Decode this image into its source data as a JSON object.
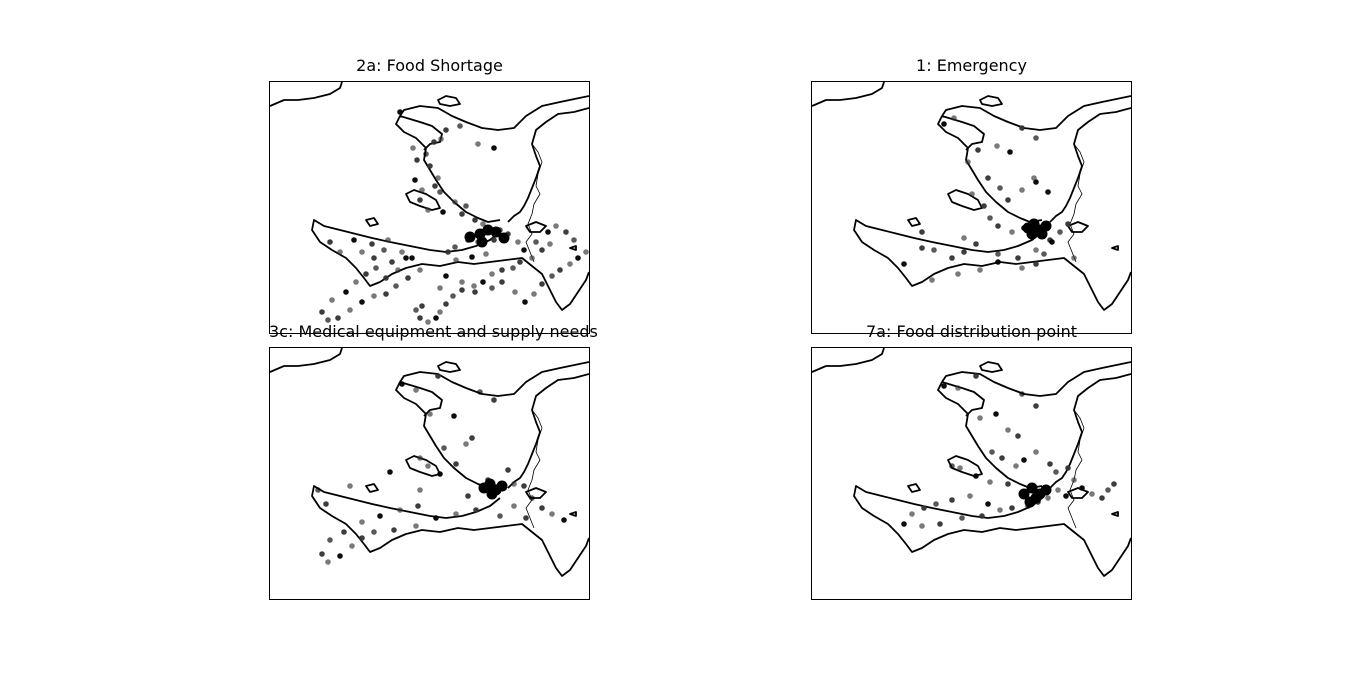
{
  "figure": {
    "panels": [
      {
        "title": "2a: Food Shortage",
        "points": [
          [
            130,
            30
          ],
          [
            171,
            57
          ],
          [
            176,
            48
          ],
          [
            190,
            44
          ],
          [
            164,
            60
          ],
          [
            208,
            62
          ],
          [
            224,
            66
          ],
          [
            143,
            66
          ],
          [
            147,
            78
          ],
          [
            156,
            72
          ],
          [
            160,
            84
          ],
          [
            168,
            96
          ],
          [
            145,
            98
          ],
          [
            152,
            108
          ],
          [
            165,
            104
          ],
          [
            170,
            110
          ],
          [
            150,
            118
          ],
          [
            158,
            128
          ],
          [
            173,
            130
          ],
          [
            185,
            120
          ],
          [
            192,
            132
          ],
          [
            196,
            124
          ],
          [
            205,
            138
          ],
          [
            213,
            142
          ],
          [
            214,
            150
          ],
          [
            208,
            160
          ],
          [
            198,
            158
          ],
          [
            185,
            165
          ],
          [
            178,
            170
          ],
          [
            186,
            178
          ],
          [
            202,
            175
          ],
          [
            216,
            172
          ],
          [
            224,
            158
          ],
          [
            230,
            148
          ],
          [
            238,
            152
          ],
          [
            248,
            160
          ],
          [
            254,
            168
          ],
          [
            262,
            176
          ],
          [
            250,
            180
          ],
          [
            243,
            186
          ],
          [
            232,
            188
          ],
          [
            222,
            192
          ],
          [
            213,
            200
          ],
          [
            204,
            204
          ],
          [
            192,
            208
          ],
          [
            183,
            214
          ],
          [
            176,
            222
          ],
          [
            170,
            230
          ],
          [
            166,
            236
          ],
          [
            158,
            240
          ],
          [
            150,
            236
          ],
          [
            146,
            228
          ],
          [
            152,
            224
          ],
          [
            170,
            206
          ],
          [
            176,
            194
          ],
          [
            192,
            200
          ],
          [
            205,
            210
          ],
          [
            222,
            206
          ],
          [
            232,
            200
          ],
          [
            245,
            210
          ],
          [
            255,
            220
          ],
          [
            264,
            212
          ],
          [
            272,
            202
          ],
          [
            282,
            194
          ],
          [
            290,
            188
          ],
          [
            300,
            182
          ],
          [
            308,
            176
          ],
          [
            316,
            170
          ],
          [
            322,
            162
          ],
          [
            304,
            158
          ],
          [
            296,
            150
          ],
          [
            286,
            144
          ],
          [
            278,
            150
          ],
          [
            280,
            162
          ],
          [
            272,
            168
          ],
          [
            266,
            160
          ],
          [
            60,
            160
          ],
          [
            70,
            170
          ],
          [
            84,
            158
          ],
          [
            92,
            170
          ],
          [
            104,
            176
          ],
          [
            114,
            168
          ],
          [
            122,
            180
          ],
          [
            132,
            170
          ],
          [
            142,
            176
          ],
          [
            150,
            188
          ],
          [
            138,
            196
          ],
          [
            126,
            204
          ],
          [
            116,
            212
          ],
          [
            104,
            214
          ],
          [
            92,
            220
          ],
          [
            80,
            228
          ],
          [
            68,
            236
          ],
          [
            58,
            238
          ],
          [
            52,
            230
          ],
          [
            62,
            218
          ],
          [
            76,
            210
          ],
          [
            86,
            200
          ],
          [
            96,
            192
          ],
          [
            106,
            186
          ],
          [
            116,
            196
          ],
          [
            128,
            188
          ],
          [
            136,
            176
          ],
          [
            118,
            158
          ],
          [
            102,
            162
          ]
        ],
        "cluster": [
          [
            200,
            155
          ],
          [
            210,
            152
          ],
          [
            218,
            148
          ],
          [
            226,
            150
          ],
          [
            234,
            156
          ],
          [
            212,
            160
          ]
        ]
      },
      {
        "title": "1: Emergency",
        "points": [
          [
            132,
            42
          ],
          [
            142,
            36
          ],
          [
            210,
            46
          ],
          [
            224,
            56
          ],
          [
            166,
            68
          ],
          [
            185,
            64
          ],
          [
            198,
            70
          ],
          [
            156,
            80
          ],
          [
            176,
            96
          ],
          [
            188,
            106
          ],
          [
            196,
            118
          ],
          [
            210,
            108
          ],
          [
            224,
            100
          ],
          [
            160,
            112
          ],
          [
            172,
            124
          ],
          [
            178,
            136
          ],
          [
            186,
            144
          ],
          [
            200,
            150
          ],
          [
            212,
            146
          ],
          [
            226,
            152
          ],
          [
            238,
            158
          ],
          [
            248,
            150
          ],
          [
            256,
            142
          ],
          [
            222,
            96
          ],
          [
            236,
            110
          ],
          [
            152,
            156
          ],
          [
            164,
            162
          ],
          [
            186,
            172
          ],
          [
            206,
            176
          ],
          [
            224,
            168
          ],
          [
            240,
            160
          ],
          [
            262,
            176
          ],
          [
            110,
            150
          ],
          [
            122,
            168
          ],
          [
            140,
            176
          ],
          [
            168,
            188
          ],
          [
            186,
            180
          ],
          [
            210,
            186
          ],
          [
            224,
            182
          ],
          [
            232,
            172
          ],
          [
            110,
            166
          ],
          [
            146,
            192
          ],
          [
            92,
            182
          ],
          [
            120,
            198
          ],
          [
            152,
            170
          ]
        ],
        "cluster": [
          [
            216,
            146
          ],
          [
            222,
            142
          ],
          [
            228,
            148
          ],
          [
            234,
            144
          ],
          [
            220,
            152
          ],
          [
            230,
            152
          ]
        ]
      },
      {
        "title": "3c: Medical equipment and supply needs",
        "points": [
          [
            132,
            36
          ],
          [
            146,
            42
          ],
          [
            168,
            28
          ],
          [
            210,
            44
          ],
          [
            224,
            52
          ],
          [
            160,
            66
          ],
          [
            184,
            68
          ],
          [
            196,
            96
          ],
          [
            202,
            90
          ],
          [
            174,
            100
          ],
          [
            186,
            116
          ],
          [
            158,
            118
          ],
          [
            170,
            126
          ],
          [
            150,
            142
          ],
          [
            198,
            148
          ],
          [
            212,
            138
          ],
          [
            218,
            132
          ],
          [
            226,
            144
          ],
          [
            234,
            140
          ],
          [
            244,
            136
          ],
          [
            254,
            138
          ],
          [
            262,
            150
          ],
          [
            272,
            160
          ],
          [
            282,
            166
          ],
          [
            294,
            172
          ],
          [
            244,
            158
          ],
          [
            256,
            170
          ],
          [
            230,
            168
          ],
          [
            206,
            162
          ],
          [
            186,
            166
          ],
          [
            166,
            170
          ],
          [
            146,
            178
          ],
          [
            124,
            182
          ],
          [
            104,
            184
          ],
          [
            92,
            190
          ],
          [
            82,
            198
          ],
          [
            70,
            208
          ],
          [
            58,
            214
          ],
          [
            52,
            206
          ],
          [
            60,
            192
          ],
          [
            74,
            184
          ],
          [
            92,
            174
          ],
          [
            110,
            168
          ],
          [
            130,
            162
          ],
          [
            148,
            158
          ],
          [
            48,
            142
          ],
          [
            56,
            156
          ],
          [
            80,
            138
          ],
          [
            120,
            124
          ],
          [
            150,
            110
          ],
          [
            238,
            122
          ]
        ],
        "cluster": [
          [
            214,
            140
          ],
          [
            220,
            136
          ],
          [
            226,
            142
          ],
          [
            232,
            138
          ],
          [
            222,
            146
          ]
        ]
      },
      {
        "title": "7a: Food distribution point",
        "points": [
          [
            132,
            38
          ],
          [
            146,
            40
          ],
          [
            164,
            28
          ],
          [
            210,
            46
          ],
          [
            224,
            58
          ],
          [
            168,
            70
          ],
          [
            184,
            66
          ],
          [
            196,
            82
          ],
          [
            206,
            88
          ],
          [
            180,
            104
          ],
          [
            190,
            110
          ],
          [
            204,
            118
          ],
          [
            212,
            112
          ],
          [
            224,
            104
          ],
          [
            238,
            116
          ],
          [
            244,
            124
          ],
          [
            256,
            120
          ],
          [
            262,
            132
          ],
          [
            270,
            140
          ],
          [
            280,
            146
          ],
          [
            290,
            150
          ],
          [
            296,
            142
          ],
          [
            302,
            136
          ],
          [
            246,
            142
          ],
          [
            254,
            148
          ],
          [
            236,
            150
          ],
          [
            226,
            154
          ],
          [
            216,
            158
          ],
          [
            200,
            160
          ],
          [
            188,
            162
          ],
          [
            176,
            156
          ],
          [
            158,
            148
          ],
          [
            140,
            152
          ],
          [
            124,
            156
          ],
          [
            112,
            160
          ],
          [
            100,
            166
          ],
          [
            92,
            176
          ],
          [
            110,
            178
          ],
          [
            128,
            176
          ],
          [
            150,
            170
          ],
          [
            170,
            168
          ],
          [
            148,
            120
          ],
          [
            164,
            128
          ],
          [
            178,
            134
          ],
          [
            196,
            136
          ],
          [
            140,
            118
          ]
        ],
        "cluster": [
          [
            212,
            146
          ],
          [
            220,
            140
          ],
          [
            228,
            146
          ],
          [
            234,
            142
          ],
          [
            224,
            150
          ],
          [
            218,
            154
          ]
        ]
      }
    ]
  }
}
